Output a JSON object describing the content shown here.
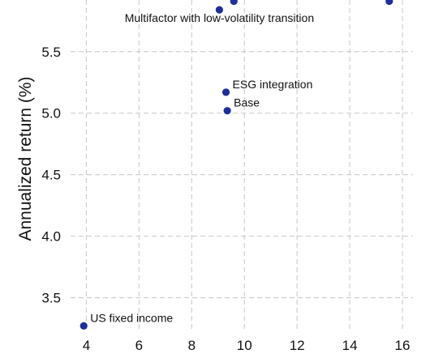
{
  "chart_data": {
    "type": "scatter",
    "ylabel": "Annualized return (%)",
    "xlim": [
      3.4,
      16.4
    ],
    "ylim": [
      3.22,
      5.92
    ],
    "x_ticks": [
      4,
      6,
      8,
      10,
      12,
      14,
      16
    ],
    "y_ticks": [
      3.5,
      4.0,
      4.5,
      5.0,
      5.5
    ],
    "y_tick_labels": [
      "3.5",
      "4.0",
      "4.5",
      "5.0",
      "5.5"
    ],
    "grid": true,
    "point_color": "#1f2f9a",
    "grid_color": "#cfcfcf",
    "points": [
      {
        "label": "Multifactor with low-volatility transition",
        "x": 9.05,
        "y": 5.84
      },
      {
        "label": "",
        "x": 9.6,
        "y": 5.91
      },
      {
        "label": "",
        "x": 15.5,
        "y": 5.91
      },
      {
        "label": "ESG integration",
        "x": 9.3,
        "y": 5.17
      },
      {
        "label": "Base",
        "x": 9.35,
        "y": 5.02
      },
      {
        "label": "US fixed income",
        "x": 3.9,
        "y": 3.27
      }
    ]
  }
}
